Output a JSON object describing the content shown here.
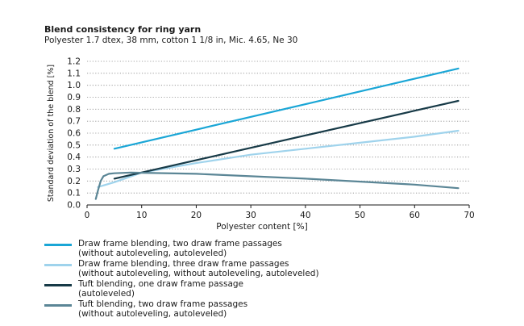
{
  "title": "Blend consistency for ring yarn",
  "subtitle": "Polyester 1.7 dtex, 38 mm, cotton 1 1/8 in, Mic. 4.65, Ne 30",
  "chart_data": {
    "type": "line",
    "xlabel": "Polyester content [%]",
    "ylabel": "Standard deviation of the blend [%]",
    "xlim": [
      0,
      70
    ],
    "ylim": [
      0,
      1.2
    ],
    "xticks": [
      "0",
      "10",
      "20",
      "30",
      "40",
      "50",
      "60",
      "70"
    ],
    "yticks": [
      "0.0",
      "0.1",
      "0.2",
      "0.3",
      "0.4",
      "0.5",
      "0.6",
      "0.7",
      "0.8",
      "0.9",
      "1.0",
      "1.1",
      "1.2"
    ],
    "grid": "horizontal dotted",
    "series": [
      {
        "name": "Draw frame blending, two draw frame passages (without autoleveling, autoleveled)",
        "color": "#1aa6d6",
        "x": [
          5,
          68
        ],
        "y": [
          0.47,
          1.14
        ]
      },
      {
        "name": "Draw frame blending, three draw frame passages (without autoleveling, without autoleveling, autoleveled)",
        "color": "#9fd3ec",
        "x": [
          2,
          5,
          10,
          20,
          30,
          40,
          50,
          60,
          68
        ],
        "y": [
          0.15,
          0.19,
          0.27,
          0.35,
          0.42,
          0.47,
          0.52,
          0.57,
          0.62
        ]
      },
      {
        "name": "Tuft blending, one draw frame passage (autoleveled)",
        "color": "#173a47",
        "x": [
          5,
          68
        ],
        "y": [
          0.22,
          0.87
        ]
      },
      {
        "name": "Tuft blending, two draw frame passages (without autoleveling, autoleveled)",
        "color": "#5b8696",
        "x": [
          1.6,
          2,
          2.5,
          3,
          4,
          5,
          8,
          20,
          40,
          60,
          68
        ],
        "y": [
          0.05,
          0.12,
          0.2,
          0.24,
          0.26,
          0.265,
          0.27,
          0.26,
          0.22,
          0.17,
          0.14
        ]
      }
    ]
  },
  "legend": [
    {
      "line1": "Draw frame blending, two draw frame passages",
      "line2": "(without autoleveling, autoleveled)",
      "color": "#1aa6d6"
    },
    {
      "line1": "Draw frame blending, three draw frame passages",
      "line2": "(without autoleveling, without autoleveling, autoleveled)",
      "color": "#9fd3ec"
    },
    {
      "line1": "Tuft blending, one draw frame passage",
      "line2": "(autoleveled)",
      "color": "#173a47"
    },
    {
      "line1": "Tuft blending, two draw frame passages",
      "line2": "(without autoleveling, autoleveled)",
      "color": "#5b8696"
    }
  ]
}
